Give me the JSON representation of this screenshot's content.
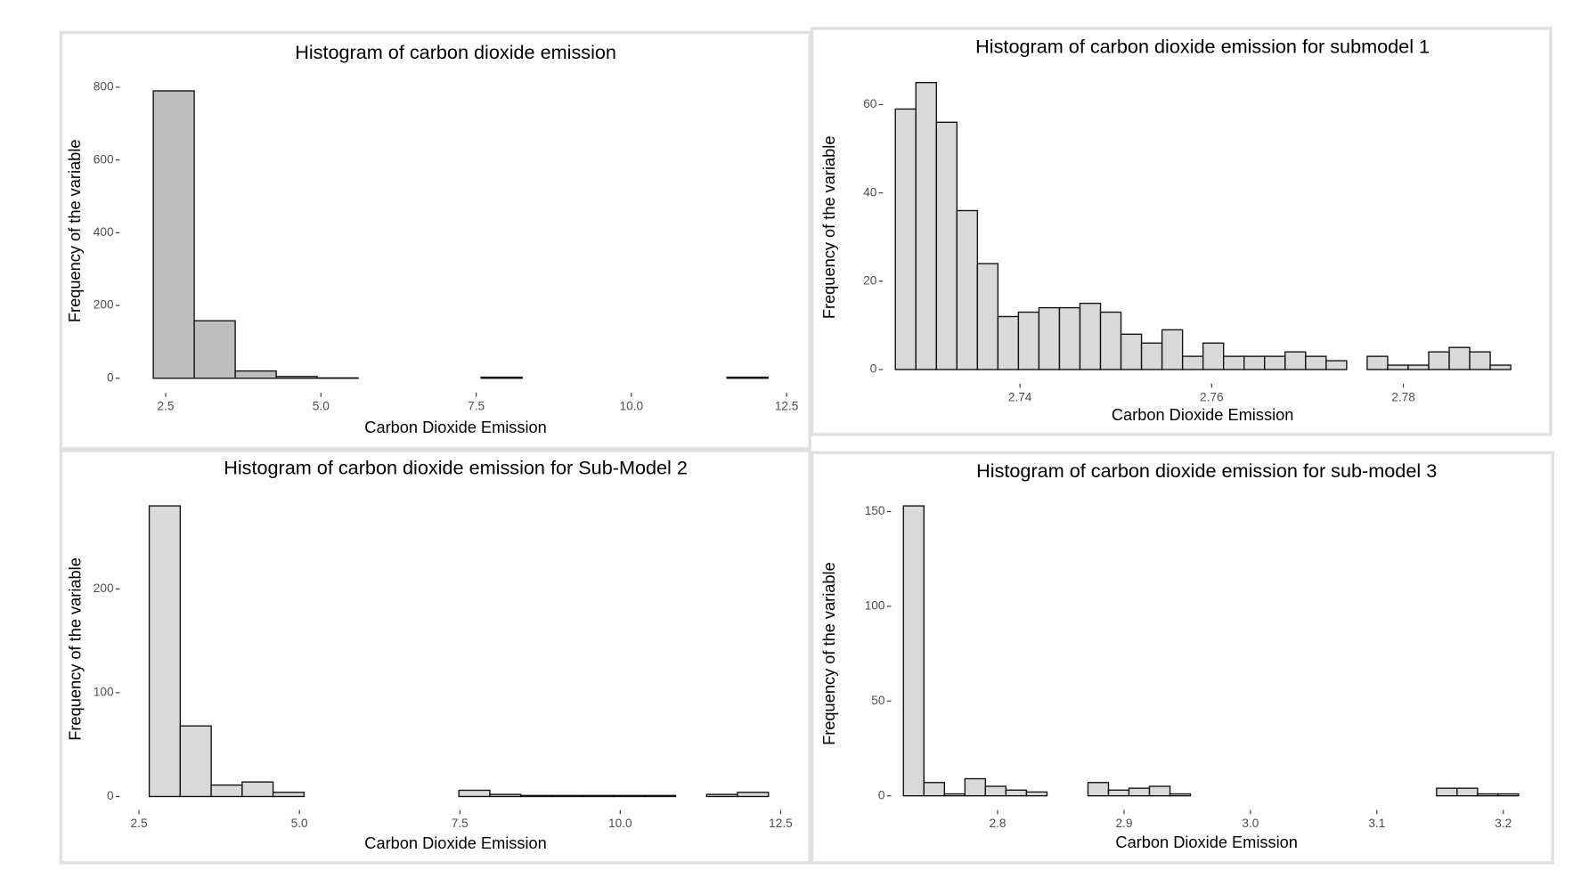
{
  "chart_data": [
    {
      "type": "histogram",
      "title": "Histogram of carbon dioxide emission",
      "x_label": "Carbon Dioxide Emission",
      "y_label": "Frequency of the variable",
      "color": "#bdbdbd",
      "bins": [
        2.3,
        2.96,
        3.62,
        4.28,
        4.94,
        5.6,
        6.26,
        6.92,
        7.58,
        8.24,
        8.9,
        9.56,
        10.22,
        10.88,
        11.54,
        12.2
      ],
      "counts": [
        790,
        158,
        20,
        5,
        1,
        0,
        0,
        0,
        3,
        0,
        0,
        0,
        0,
        0,
        3
      ],
      "xlim": [
        1.76,
        12.58
      ],
      "ylim": [
        -40,
        850
      ],
      "xticks": [
        2.5,
        {
          "value": 5,
          "label": "5.0"
        },
        7.5,
        {
          "value": 10,
          "label": "10.0"
        },
        12.5
      ],
      "yticks": [
        0,
        200,
        400,
        600,
        800
      ]
    },
    {
      "type": "histogram",
      "title": "Histogram of carbon dioxide emission for submodel 1",
      "x_label": "Carbon Dioxide Emission",
      "y_label": "Frequency of the variable",
      "color": "#d9d9d9",
      "bins": [
        2.727,
        2.72914,
        2.73128,
        2.73342,
        2.73556,
        2.7377,
        2.73984,
        2.74198,
        2.74412,
        2.74626,
        2.7484,
        2.75054,
        2.75268,
        2.75482,
        2.75696,
        2.7591,
        2.76124,
        2.76338,
        2.76552,
        2.76766,
        2.7698,
        2.77194,
        2.77408,
        2.77622,
        2.77836,
        2.7805,
        2.78264,
        2.78478,
        2.78692,
        2.78906,
        2.7912
      ],
      "counts": [
        59,
        65,
        56,
        36,
        24,
        12,
        13,
        14,
        14,
        15,
        13,
        8,
        6,
        9,
        3,
        6,
        3,
        3,
        3,
        4,
        3,
        2,
        0,
        3,
        1,
        1,
        4,
        5,
        4,
        1
      ],
      "xlim": [
        2.7257,
        2.7924
      ],
      "ylim": [
        -3.2,
        67.6
      ],
      "xticks": [
        2.74,
        2.76,
        2.78
      ],
      "yticks": [
        0,
        20,
        40,
        60
      ]
    },
    {
      "type": "histogram",
      "title": "Histogram of carbon dioxide emission for Sub-Model 2",
      "x_label": "Carbon Dioxide Emission",
      "y_label": "Frequency of the variable",
      "color": "#d9d9d9",
      "bins": [
        2.66,
        3.1425,
        3.625,
        4.1075,
        4.59,
        5.0725,
        5.555,
        6.0375,
        6.52,
        7.0025,
        7.485,
        7.9675,
        8.45,
        8.9325,
        9.415,
        9.8975,
        10.38,
        10.8625,
        11.345,
        11.8275,
        12.31
      ],
      "counts": [
        280,
        68,
        11,
        14,
        4,
        0,
        0,
        0,
        0,
        0,
        6,
        2,
        1,
        1,
        1,
        1,
        1,
        0,
        2,
        4
      ],
      "xlim": [
        2.2,
        12.67
      ],
      "ylim": [
        -13,
        297
      ],
      "xticks": [
        2.5,
        {
          "value": 5,
          "label": "5.0"
        },
        7.5,
        {
          "value": 10,
          "label": "10.0"
        },
        12.5
      ],
      "yticks": [
        0,
        100,
        200
      ]
    },
    {
      "type": "histogram",
      "title": "Histogram of carbon dioxide emission for sub-model 3",
      "x_label": "Carbon Dioxide Emission",
      "y_label": "Frequency of the variable",
      "color": "#d9d9d9",
      "bins": [
        2.7255,
        2.74172,
        2.75794,
        2.77416,
        2.79038,
        2.8066,
        2.82282,
        2.83904,
        2.85526,
        2.87148,
        2.8877,
        2.90392,
        2.92014,
        2.93636,
        2.95258,
        2.9688,
        2.98502,
        3.00124,
        3.01746,
        3.03368,
        3.0499,
        3.06612,
        3.08234,
        3.09856,
        3.11478,
        3.131,
        3.14722,
        3.16344,
        3.17966,
        3.19588,
        3.2121
      ],
      "counts": [
        153,
        7,
        1,
        9,
        5,
        3,
        2,
        0,
        0,
        7,
        3,
        4,
        5,
        1,
        0,
        0,
        0,
        0,
        0,
        0,
        0,
        0,
        0,
        0,
        0,
        0,
        4,
        4,
        1,
        1
      ],
      "xlim": [
        2.7157,
        3.215
      ],
      "ylim": [
        -7.5,
        157.5
      ],
      "xticks": [
        2.8,
        2.9,
        {
          "value": 3,
          "label": "3.0"
        },
        3.1,
        3.2
      ],
      "yticks": [
        0,
        50,
        100,
        150
      ]
    }
  ]
}
